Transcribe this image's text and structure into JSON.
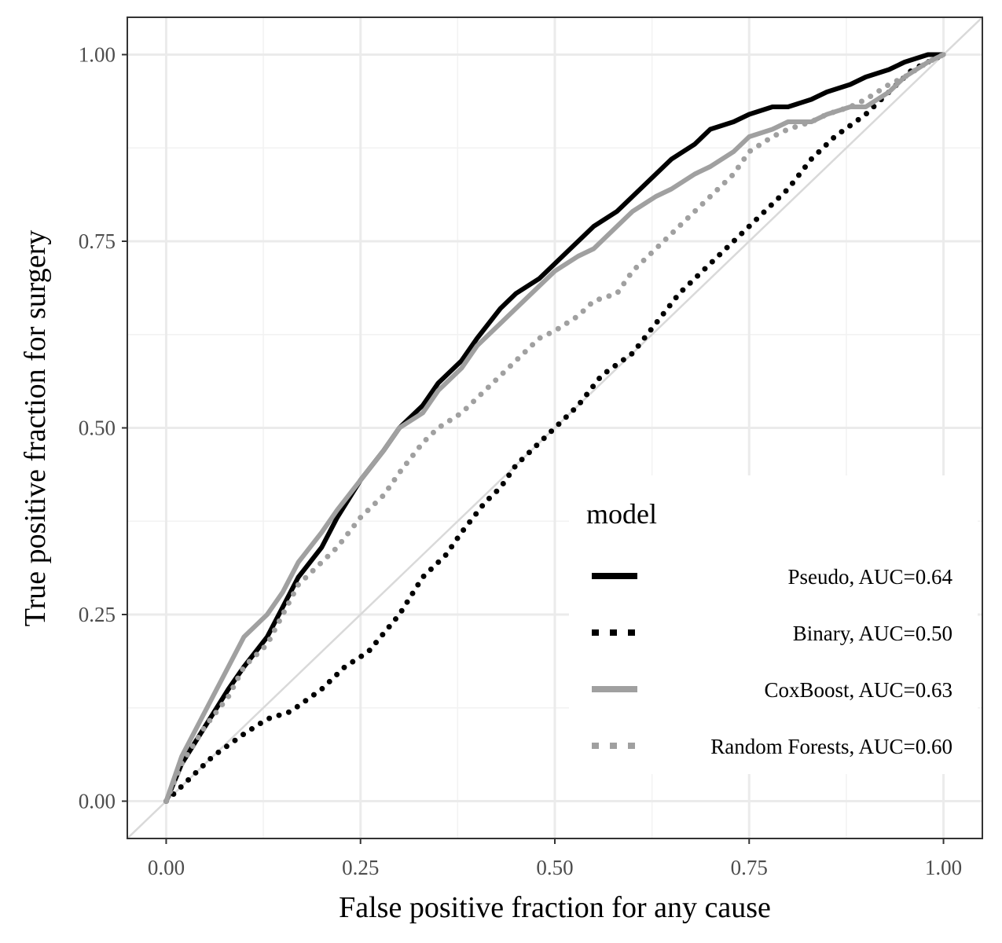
{
  "chart_data": {
    "type": "line",
    "title": "",
    "xlabel": "False positive fraction for any cause",
    "ylabel": "True positive fraction for surgery",
    "xlim": [
      -0.05,
      1.05
    ],
    "ylim": [
      -0.05,
      1.05
    ],
    "x_ticks": [
      "0.00",
      "0.25",
      "0.50",
      "0.75",
      "1.00"
    ],
    "y_ticks": [
      "0.00",
      "0.25",
      "0.50",
      "0.75",
      "1.00"
    ],
    "grid": true,
    "reference_line": {
      "from": [
        0,
        0
      ],
      "to": [
        1,
        1
      ],
      "color": "#d9d9d9"
    },
    "legend": {
      "title": "model",
      "position": "bottom-right inside"
    },
    "series": [
      {
        "name": "Pseudo, AUC=0.64",
        "style": "solid",
        "color": "#000000",
        "x": [
          0,
          0.02,
          0.05,
          0.08,
          0.1,
          0.13,
          0.15,
          0.17,
          0.2,
          0.22,
          0.25,
          0.28,
          0.3,
          0.33,
          0.35,
          0.38,
          0.4,
          0.43,
          0.45,
          0.48,
          0.5,
          0.53,
          0.55,
          0.58,
          0.6,
          0.63,
          0.65,
          0.68,
          0.7,
          0.73,
          0.75,
          0.78,
          0.8,
          0.83,
          0.85,
          0.88,
          0.9,
          0.93,
          0.95,
          0.98,
          1.0
        ],
        "y": [
          0,
          0.05,
          0.1,
          0.15,
          0.18,
          0.22,
          0.26,
          0.3,
          0.34,
          0.38,
          0.43,
          0.47,
          0.5,
          0.53,
          0.56,
          0.59,
          0.62,
          0.66,
          0.68,
          0.7,
          0.72,
          0.75,
          0.77,
          0.79,
          0.81,
          0.84,
          0.86,
          0.88,
          0.9,
          0.91,
          0.92,
          0.93,
          0.93,
          0.94,
          0.95,
          0.96,
          0.97,
          0.98,
          0.99,
          1.0,
          1.0
        ]
      },
      {
        "name": "Binary, AUC=0.50",
        "style": "dotted",
        "color": "#000000",
        "x": [
          0,
          0.03,
          0.06,
          0.1,
          0.13,
          0.16,
          0.2,
          0.23,
          0.26,
          0.3,
          0.33,
          0.36,
          0.38,
          0.41,
          0.43,
          0.45,
          0.47,
          0.5,
          0.53,
          0.56,
          0.6,
          0.63,
          0.66,
          0.7,
          0.73,
          0.76,
          0.8,
          0.83,
          0.86,
          0.9,
          0.93,
          0.96,
          1.0
        ],
        "y": [
          0,
          0.03,
          0.06,
          0.09,
          0.11,
          0.12,
          0.15,
          0.18,
          0.2,
          0.25,
          0.3,
          0.33,
          0.36,
          0.4,
          0.42,
          0.45,
          0.47,
          0.5,
          0.53,
          0.57,
          0.6,
          0.64,
          0.68,
          0.72,
          0.75,
          0.78,
          0.82,
          0.86,
          0.89,
          0.92,
          0.95,
          0.98,
          1.0
        ]
      },
      {
        "name": "CoxBoost, AUC=0.63",
        "style": "solid",
        "color": "#a0a0a0",
        "x": [
          0,
          0.02,
          0.05,
          0.08,
          0.1,
          0.13,
          0.15,
          0.17,
          0.2,
          0.22,
          0.25,
          0.28,
          0.3,
          0.33,
          0.35,
          0.38,
          0.4,
          0.43,
          0.45,
          0.48,
          0.5,
          0.53,
          0.55,
          0.58,
          0.6,
          0.63,
          0.65,
          0.68,
          0.7,
          0.73,
          0.75,
          0.78,
          0.8,
          0.83,
          0.85,
          0.88,
          0.9,
          0.93,
          0.95,
          0.98,
          1.0
        ],
        "y": [
          0,
          0.06,
          0.12,
          0.18,
          0.22,
          0.25,
          0.28,
          0.32,
          0.36,
          0.39,
          0.43,
          0.47,
          0.5,
          0.52,
          0.55,
          0.58,
          0.61,
          0.64,
          0.66,
          0.69,
          0.71,
          0.73,
          0.74,
          0.77,
          0.79,
          0.81,
          0.82,
          0.84,
          0.85,
          0.87,
          0.89,
          0.9,
          0.91,
          0.91,
          0.92,
          0.93,
          0.93,
          0.95,
          0.97,
          0.99,
          1.0
        ]
      },
      {
        "name": "Random Forests, AUC=0.60",
        "style": "dotted",
        "color": "#a0a0a0",
        "x": [
          0,
          0.02,
          0.05,
          0.08,
          0.1,
          0.13,
          0.15,
          0.17,
          0.2,
          0.22,
          0.25,
          0.28,
          0.3,
          0.33,
          0.35,
          0.38,
          0.4,
          0.43,
          0.45,
          0.48,
          0.5,
          0.53,
          0.55,
          0.58,
          0.6,
          0.63,
          0.65,
          0.68,
          0.7,
          0.73,
          0.75,
          0.78,
          0.8,
          0.83,
          0.85,
          0.88,
          0.9,
          0.93,
          0.95,
          0.98,
          1.0
        ],
        "y": [
          0,
          0.05,
          0.1,
          0.14,
          0.18,
          0.21,
          0.25,
          0.29,
          0.32,
          0.34,
          0.38,
          0.41,
          0.44,
          0.48,
          0.5,
          0.52,
          0.54,
          0.57,
          0.59,
          0.62,
          0.63,
          0.65,
          0.67,
          0.68,
          0.71,
          0.74,
          0.76,
          0.79,
          0.81,
          0.84,
          0.87,
          0.89,
          0.9,
          0.91,
          0.92,
          0.93,
          0.94,
          0.96,
          0.97,
          0.99,
          1.0
        ]
      }
    ]
  }
}
